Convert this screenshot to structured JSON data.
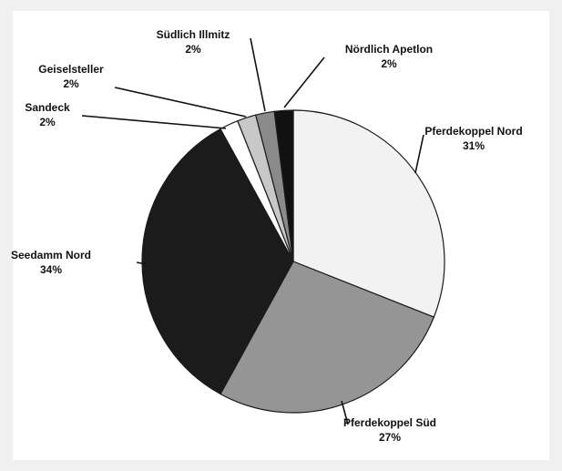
{
  "chart_data": {
    "type": "pie",
    "title": "",
    "slices": [
      {
        "label": "Pferdekoppel Nord",
        "value": 31,
        "display": "31%",
        "color": "#f2f2f2"
      },
      {
        "label": "Pferdekoppel Süd",
        "value": 27,
        "display": "27%",
        "color": "#959595"
      },
      {
        "label": "Seedamm Nord",
        "value": 34,
        "display": "34%",
        "color": "#1b1b1b"
      },
      {
        "label": "Sandeck",
        "value": 2,
        "display": "2%",
        "color": "#ffffff"
      },
      {
        "label": "Geiselsteller",
        "value": 2,
        "display": "2%",
        "color": "#c8c8c8"
      },
      {
        "label": "Südlich Illmitz",
        "value": 2,
        "display": "2%",
        "color": "#8a8a8a"
      },
      {
        "label": "Nördlich Apetlon",
        "value": 2,
        "display": "2%",
        "color": "#111111"
      }
    ],
    "start_angle_deg": 0,
    "direction": "clockwise",
    "legend": "none",
    "labels": "outside-with-leader-lines"
  }
}
